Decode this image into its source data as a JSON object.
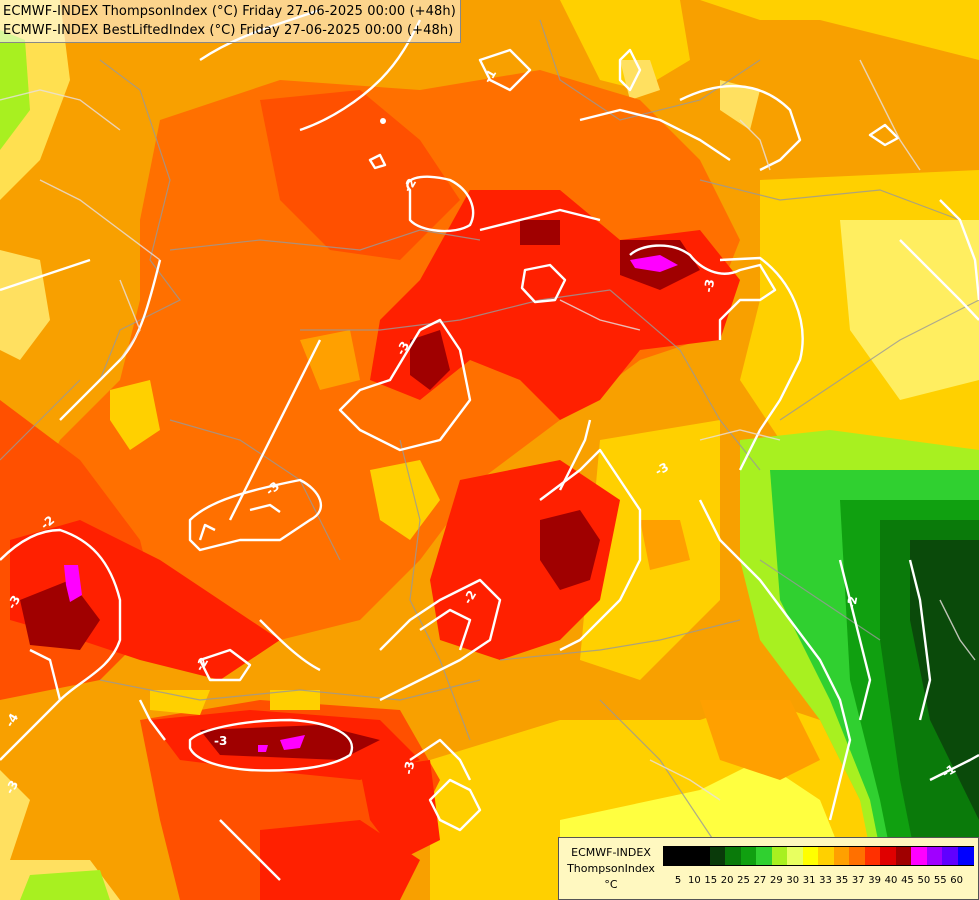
{
  "title": {
    "line1": "ECMWF-INDEX ThompsonIndex (°C) Friday 27-06-2025 00:00 (+48h)",
    "line2": "ECMWF-INDEX BestLiftedIndex (°C) Friday 27-06-2025 00:00 (+48h)"
  },
  "legend": {
    "model": "ECMWF-INDEX",
    "parameter": "ThompsonIndex",
    "unit": "°C",
    "ticks": [
      "5",
      "10",
      "15",
      "20",
      "25",
      "27",
      "29",
      "30",
      "31",
      "33",
      "35",
      "37",
      "39",
      "40",
      "45",
      "50",
      "55",
      "60"
    ],
    "colors": [
      "#000000",
      "#000000",
      "#000000",
      "#0a3a0a",
      "#0a7a0a",
      "#10a010",
      "#30d030",
      "#a8f020",
      "#e8ff60",
      "#ffff00",
      "#ffd000",
      "#ffa000",
      "#ff7000",
      "#ff3000",
      "#e00000",
      "#a00000",
      "#ff00ff",
      "#a000ff",
      "#6000ff",
      "#0000ff"
    ]
  },
  "contours": {
    "labels": [
      "-2",
      "-2",
      "-2",
      "-2",
      "-3",
      "-3",
      "-3",
      "-3",
      "-3",
      "-3",
      "-3",
      "-3",
      "-1",
      "-1",
      "-4",
      "-2"
    ]
  }
}
